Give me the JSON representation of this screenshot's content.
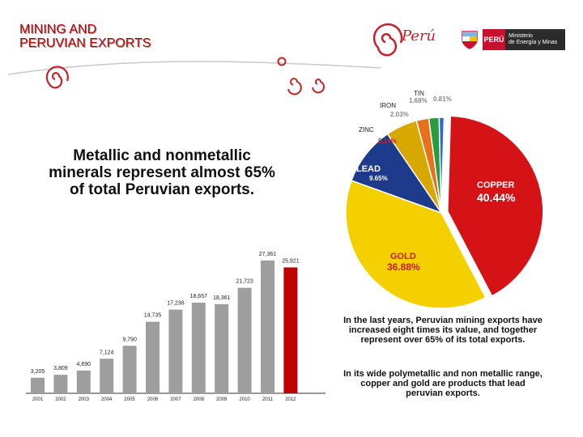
{
  "title": "MINING AND\nPERUVIAN EXPORTS",
  "brand": {
    "logo_text": "Perú",
    "peru_badge": "PERÚ",
    "ministry_line1": "Ministerio",
    "ministry_line2": "de Energía y Minas"
  },
  "headline": "Metallic and nonmetallic minerals represent almost 65% of total Peruvian exports.",
  "paragraph1": "In the last years, Peruvian mining exports have increased eight times its value, and together represent over 65% of its total exports.",
  "paragraph2": "In its wide polymetallic and non metallic range, copper and gold are products that lead peruvian exports.",
  "colors": {
    "title": "#c00000",
    "copper": "#d51317",
    "gold": "#f5d000",
    "lead": "#1e3a8a",
    "zinc": "#d7a800",
    "iron": "#e8711c",
    "tin": "#2a9c3d",
    "other": "#2e6bd1",
    "bar": "#9e9e9e",
    "bar_last": "#c00000"
  },
  "chart_data": [
    {
      "type": "pie",
      "title": "",
      "slices": [
        {
          "name": "COPPER",
          "value": 40.44,
          "label": "40.44%"
        },
        {
          "name": "GOLD",
          "value": 36.88,
          "label": "36.88%"
        },
        {
          "name": "LEAD",
          "value": 9.65,
          "label": "9.65%"
        },
        {
          "name": "ZINC",
          "value": 5.14,
          "label": "5.14%"
        },
        {
          "name": "IRON",
          "value": 2.03,
          "label": "2.03%"
        },
        {
          "name": "TIN",
          "value": 1.68,
          "label": "1.68%"
        },
        {
          "name": "",
          "value": 0.81,
          "label": "0.81%"
        }
      ]
    },
    {
      "type": "bar",
      "title": "",
      "xlabel": "",
      "ylabel": "",
      "ylim": [
        0,
        30000
      ],
      "categories": [
        "2001",
        "2002",
        "2003",
        "2004",
        "2005",
        "2006",
        "2007",
        "2008",
        "2009",
        "2010",
        "2011",
        "2012"
      ],
      "values": [
        3205,
        3809,
        4690,
        7124,
        9790,
        14735,
        17238,
        18657,
        18361,
        21723,
        27361,
        25921
      ],
      "value_labels": [
        "3,205",
        "3,809",
        "4,690",
        "7,124",
        "9,790",
        "14,735",
        "17,238",
        "18,657",
        "18,361",
        "21,723",
        "27,361",
        "25,921"
      ]
    }
  ]
}
